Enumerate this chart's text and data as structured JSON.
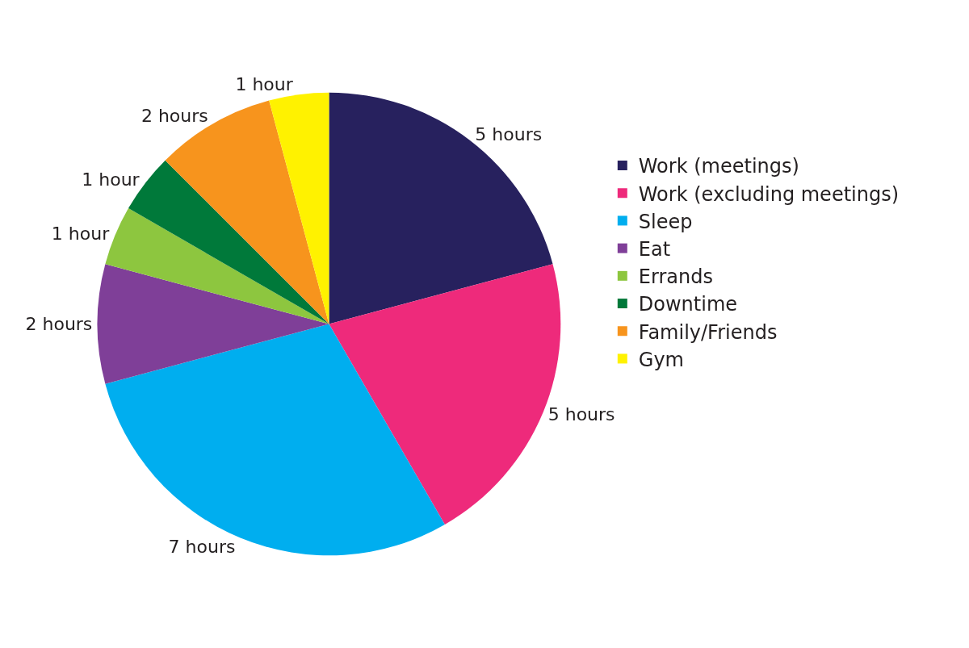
{
  "chart_data": {
    "type": "pie",
    "categories": [
      "Work (meetings)",
      "Work (excluding meetings)",
      "Sleep",
      "Eat",
      "Errands",
      "Downtime",
      "Family/Friends",
      "Gym"
    ],
    "values": [
      5,
      5,
      7,
      2,
      1,
      1,
      2,
      1
    ],
    "value_labels": [
      "5 hours",
      "5 hours",
      "7 hours",
      "2 hours",
      "1 hour",
      "1 hour",
      "2 hours",
      "1 hour"
    ],
    "colors": [
      "#27215e",
      "#ee2a7b",
      "#00aeef",
      "#7f3f98",
      "#8dc63f",
      "#00793a",
      "#f7941d",
      "#fff200"
    ],
    "legend": "right"
  }
}
